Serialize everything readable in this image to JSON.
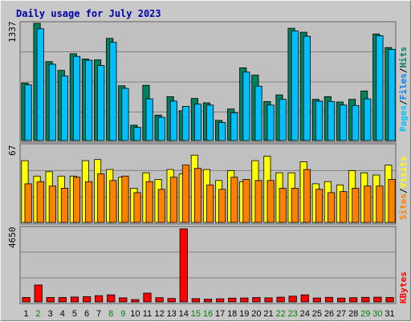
{
  "chart_data": {
    "type": "bar",
    "title": "Daily usage for July 2023",
    "days": [
      "1",
      "2",
      "3",
      "4",
      "5",
      "6",
      "7",
      "8",
      "9",
      "10",
      "11",
      "12",
      "13",
      "14",
      "15",
      "16",
      "17",
      "18",
      "19",
      "20",
      "21",
      "22",
      "23",
      "24",
      "25",
      "26",
      "27",
      "28",
      "29",
      "30",
      "31"
    ],
    "weekend_days": [
      "2",
      "8",
      "9",
      "15",
      "16",
      "22",
      "23",
      "29",
      "30"
    ],
    "colors": {
      "hits": "#00805c",
      "files": "#00c0ff",
      "pages": "#00c0ff",
      "visits": "#ffff00",
      "sites": "#ff8000",
      "kbytes": "#ff0000",
      "weekday_label": "#000000",
      "weekend_label": "#008000",
      "plot_bg": "#c0c0c0",
      "grid": "#808080"
    },
    "panels": [
      {
        "name": "hits-files-pages",
        "ymax_label": "1337",
        "ylim": [
          0,
          1337
        ],
        "legend": [
          {
            "label": "Pages",
            "color": "#00c0ff"
          },
          {
            "label": "/",
            "color": "#000000"
          },
          {
            "label": "Files",
            "color": "#0080ff"
          },
          {
            "label": "/",
            "color": "#000000"
          },
          {
            "label": "Hits",
            "color": "#00805c"
          }
        ],
        "series": [
          {
            "name": "Hits",
            "color": "#00805c",
            "values": [
              655,
              1337,
              900,
              800,
              990,
              930,
              920,
              1165,
              625,
              175,
              630,
              290,
              500,
              340,
              480,
              430,
              230,
              360,
              830,
              745,
              445,
              520,
              1280,
              1235,
              470,
              500,
              440,
              470,
              565,
              1215,
              1060
            ]
          },
          {
            "name": "Files",
            "color": "#00c0ff",
            "values": [
              635,
              1275,
              870,
              735,
              960,
              915,
              855,
              1120,
              595,
              150,
              475,
              265,
              450,
              390,
              415,
              405,
              205,
              315,
              780,
              620,
              405,
              470,
              1250,
              1190,
              450,
              445,
              405,
              400,
              475,
              1195,
              1040
            ]
          }
        ]
      },
      {
        "name": "visits-sites",
        "ymax_label": "67",
        "ylim": [
          0,
          67
        ],
        "legend": [
          {
            "label": "Sites",
            "color": "#ff8000"
          },
          {
            "label": "/",
            "color": "#000000"
          },
          {
            "label": "Visits",
            "color": "#ffff00"
          }
        ],
        "series": [
          {
            "name": "Visits",
            "color": "#ffff00",
            "values": [
              56,
              42,
              46,
              42,
              42,
              56,
              57,
              48,
              41,
              31,
              45,
              39,
              48,
              44,
              61,
              48,
              38,
              47,
              37,
              56,
              60,
              45,
              45,
              55,
              35,
              37,
              34,
              47,
              45,
              43,
              52
            ]
          },
          {
            "name": "Sites",
            "color": "#ff8000",
            "values": [
              35,
              37,
              33,
              31,
              41,
              37,
              44,
              38,
              42,
              27,
              37,
              30,
              41,
              52,
              49,
              34,
              30,
              41,
              39,
              38,
              38,
              31,
              31,
              48,
              30,
              27,
              28,
              31,
              33,
              33,
              39
            ]
          }
        ]
      },
      {
        "name": "kbytes",
        "ymax_label": "4650",
        "ylim": [
          0,
          4650
        ],
        "legend": [
          {
            "label": "KBytes",
            "color": "#ff0000"
          }
        ],
        "series": [
          {
            "name": "KBytes",
            "color": "#ff0000",
            "values": [
              280,
              1080,
              280,
              280,
              310,
              330,
              400,
              450,
              260,
              150,
              560,
              270,
              220,
              4650,
              210,
              180,
              200,
              240,
              250,
              280,
              260,
              300,
              370,
              450,
              250,
              290,
              240,
              270,
              290,
              300,
              280
            ]
          }
        ]
      }
    ]
  }
}
